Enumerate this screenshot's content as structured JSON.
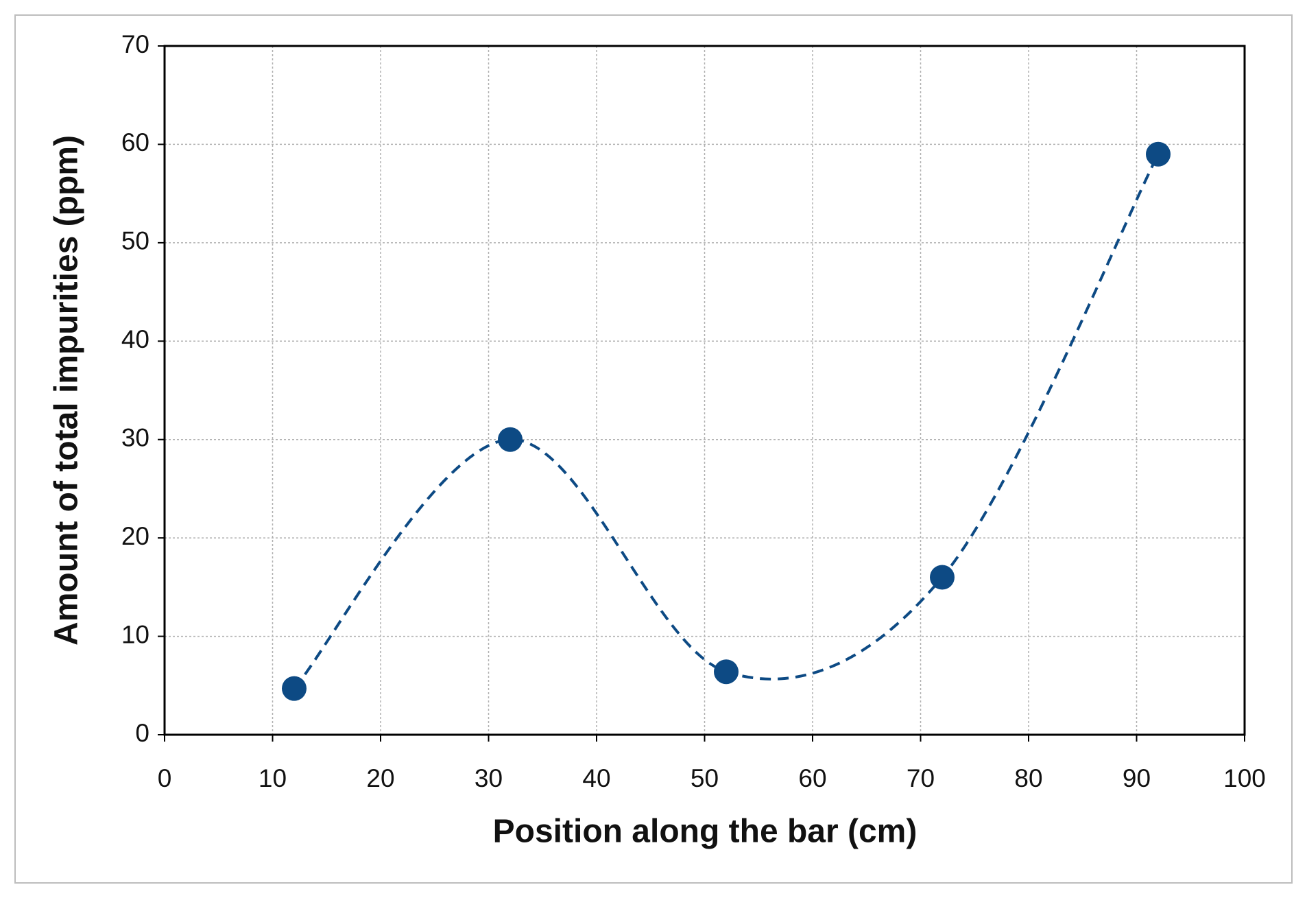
{
  "chart_data": {
    "type": "scatter",
    "x_label": "Position along the bar (cm)",
    "y_label": "Amount of total impurities (ppm)",
    "x": [
      12,
      32,
      52,
      72,
      92
    ],
    "values": [
      4.7,
      30,
      6.4,
      16,
      59
    ],
    "color": "#0d4a84",
    "line_style": "dashed",
    "smooth": true,
    "xlim": [
      0,
      100
    ],
    "xticks": [
      0,
      10,
      20,
      30,
      40,
      50,
      60,
      70,
      80,
      90,
      100
    ],
    "ylim": [
      0,
      70
    ],
    "yticks": [
      0,
      10,
      20,
      30,
      40,
      50,
      60,
      70
    ],
    "grid": true
  }
}
